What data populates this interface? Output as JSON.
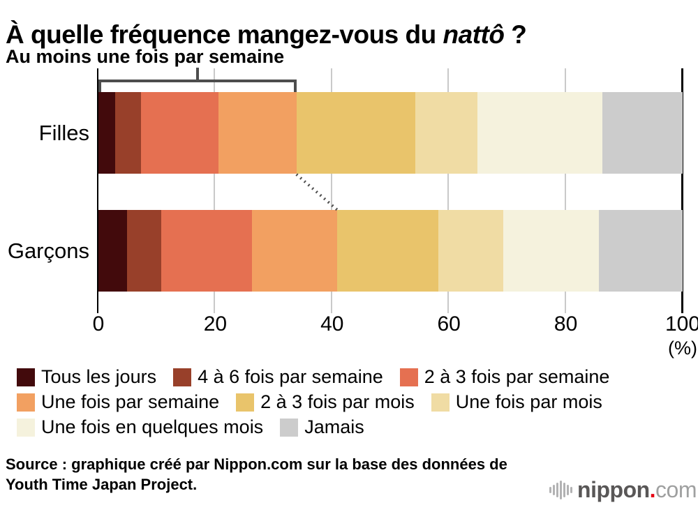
{
  "title": {
    "prefix": "À quelle fréquence mangez-vous du ",
    "italic": "nattô",
    "suffix": " ?"
  },
  "annotation": {
    "label": "Au moins une fois par semaine"
  },
  "axis": {
    "ticks": [
      0,
      20,
      40,
      60,
      80,
      100
    ],
    "unit": "(%)"
  },
  "chart_data": {
    "type": "bar",
    "orientation": "horizontal",
    "stacked": true,
    "grid": true,
    "xlim": [
      0,
      100
    ],
    "categories": [
      "Filles",
      "Garçons"
    ],
    "series": [
      {
        "name": "Tous les jours",
        "color": "#420a0c",
        "values": [
          2.9,
          4.9
        ]
      },
      {
        "name": "4 à 6 fois par semaine",
        "color": "#98402a",
        "values": [
          4.4,
          5.8
        ]
      },
      {
        "name": "2 à 3 fois par semaine",
        "color": "#e57051",
        "values": [
          13.3,
          15.6
        ]
      },
      {
        "name": "Une fois par semaine",
        "color": "#f2a061",
        "values": [
          13.3,
          14.6
        ]
      },
      {
        "name": "2 à 3 fois par mois",
        "color": "#e9c46b",
        "values": [
          20.3,
          17.3
        ]
      },
      {
        "name": "Une fois par mois",
        "color": "#f0dca4",
        "values": [
          10.7,
          11.1
        ]
      },
      {
        "name": "Une fois en quelques mois",
        "color": "#f5f2dd",
        "values": [
          21.4,
          16.4
        ]
      },
      {
        "name": "Jamais",
        "color": "#cccccc",
        "values": [
          13.7,
          14.3
        ]
      }
    ],
    "annotation_span_series_count": 4,
    "legend_rows": [
      [
        0,
        1,
        2
      ],
      [
        3,
        4,
        5
      ],
      [
        6,
        7
      ]
    ],
    "legend_position": "bottom",
    "accent_line_color": "#4d4d4d",
    "gridline_color": "#c9c9c9"
  },
  "source": {
    "line1": "Source : graphique créé par Nippon.com sur la base des données de",
    "line2": "Youth Time Japan Project."
  },
  "logo": {
    "name": "nippon",
    "dot": ".",
    "tld": "com"
  }
}
